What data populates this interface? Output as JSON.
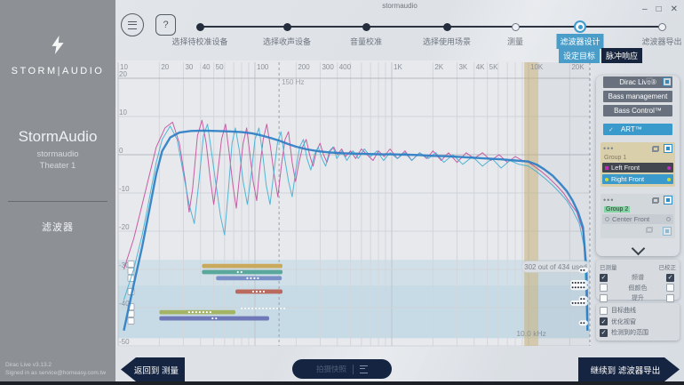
{
  "window": {
    "title": "stormaudio",
    "minimize": "–",
    "maximize": "□",
    "close": "✕",
    "help": "?"
  },
  "sidebar": {
    "brand": "STORM|AUDIO",
    "title": "StormAudio",
    "subtitle": "stormaudio",
    "theater": "Theater 1",
    "section": "滤波器",
    "version": "Dirac Live v3.13.2",
    "signed_in": "Signed in as service@homeasy.com.tw"
  },
  "stepper": {
    "steps": [
      {
        "label": "选择待校准设备",
        "state": "done"
      },
      {
        "label": "选择收声设备",
        "state": "done"
      },
      {
        "label": "音量校准",
        "state": "done"
      },
      {
        "label": "选择使用场景",
        "state": "done"
      },
      {
        "label": "测量",
        "state": "todo"
      },
      {
        "label": "滤波器设计",
        "state": "active"
      },
      {
        "label": "滤波器导出",
        "state": "todo"
      }
    ],
    "subtabs": [
      {
        "label": "设定目标",
        "active": true
      },
      {
        "label": "脉冲响应",
        "active": false
      }
    ]
  },
  "right_panel": {
    "modes": [
      {
        "label": "Dirac Live®",
        "active": false
      },
      {
        "label": "Bass management",
        "active": false
      },
      {
        "label": "Bass Control™",
        "active": false
      },
      {
        "label": "ART™",
        "active": true,
        "check": "✓"
      }
    ],
    "groups": [
      {
        "name": "Group 1",
        "menu": "•••",
        "items": [
          {
            "name": "Left Front",
            "style": "dark",
            "marker": "#bb2fb4"
          },
          {
            "name": "Right Front",
            "style": "blue",
            "marker": "#c9d832"
          }
        ]
      },
      {
        "name": "Group 2",
        "menu": "•••",
        "highlight": true,
        "items": [
          {
            "name": "Center Front",
            "style": "light",
            "marker": "donut"
          }
        ]
      }
    ]
  },
  "legend": {
    "measured_header": "已测量",
    "corrected_header": "已校正",
    "rows": [
      {
        "label": "频谱",
        "measured": true,
        "corrected": true
      },
      {
        "label": "假颜色",
        "measured": false,
        "corrected": false
      },
      {
        "label": "提升",
        "measured": false,
        "corrected": false
      }
    ],
    "options": [
      {
        "label": "目标曲线",
        "checked": false
      },
      {
        "label": "优化视窗",
        "checked": true
      },
      {
        "label": "检测到的范围",
        "checked": true
      }
    ]
  },
  "footer": {
    "back_label": "返回到 测量",
    "snapshot_label": "拍摄快照",
    "next_label": "继续到 滤波器导出"
  },
  "chart": {
    "freq_ticks": [
      {
        "f": 10,
        "label": "10"
      },
      {
        "f": 20,
        "label": "20"
      },
      {
        "f": 30,
        "label": "30"
      },
      {
        "f": 40,
        "label": "40"
      },
      {
        "f": 50,
        "label": "50"
      },
      {
        "f": 100,
        "label": "100"
      },
      {
        "f": 200,
        "label": "200"
      },
      {
        "f": 300,
        "label": "300"
      },
      {
        "f": 400,
        "label": "400"
      },
      {
        "f": 1000,
        "label": "1K"
      },
      {
        "f": 2000,
        "label": "2K"
      },
      {
        "f": 3000,
        "label": "3K"
      },
      {
        "f": 4000,
        "label": "4K"
      },
      {
        "f": 5000,
        "label": "5K"
      },
      {
        "f": 10000,
        "label": "10K"
      },
      {
        "f": 20000,
        "label": "20K"
      }
    ],
    "grid_freqs": [
      10,
      20,
      30,
      40,
      50,
      60,
      70,
      80,
      90,
      100,
      200,
      300,
      400,
      500,
      600,
      700,
      800,
      900,
      1000,
      2000,
      3000,
      4000,
      5000,
      6000,
      7000,
      8000,
      9000,
      10000,
      20000
    ],
    "db_ticks": [
      20,
      10,
      0,
      -10,
      -20,
      -30,
      -40,
      -50
    ],
    "cursor": {
      "f": 150,
      "label": "150 Hz"
    },
    "curtain": {
      "f1": 9300,
      "f2": 11800,
      "label": "10.0 kHz"
    },
    "tooltip": "302 out of 434 used",
    "strips": [
      {
        "db1": -27.5,
        "db2": -34.2,
        "alpha": 0.2
      },
      {
        "db1": -34.2,
        "db2": -48.0,
        "alpha": 0.3
      }
    ],
    "bands": [
      {
        "color": "#c9a95c",
        "f1": 41,
        "f2": 159,
        "db": -29.1,
        "dots": 0,
        "dotf": 0
      },
      {
        "color": "#5aa89b",
        "f1": 41,
        "f2": 159,
        "db": -30.7,
        "dots": 2,
        "dotf": 75
      },
      {
        "color": "#7b8fc7",
        "f1": 52,
        "f2": 157,
        "db": -32.3,
        "dots": 4,
        "dotf": 88
      },
      {
        "color": "#b9695e",
        "f1": 72,
        "f2": 159,
        "db": -35.8,
        "dots": 4,
        "dotf": 97
      },
      {
        "color": "#ffffff",
        "f1": 80,
        "f2": 164,
        "db": -40.2,
        "dots": 0,
        "dotf": 0,
        "dotted": true
      },
      {
        "color": "#a3b464",
        "f1": 20,
        "f2": 72,
        "db": -41.2,
        "dots": 7,
        "dotf": 33
      },
      {
        "color": "#6f79b8",
        "f1": 20,
        "f2": 127,
        "db": -42.8,
        "dots": 2,
        "dotf": 49
      }
    ],
    "band_checkboxes_db": [
      -28.6,
      -30.5,
      -32.3,
      -35.8,
      -39.8,
      -41.6,
      -43.5
    ],
    "handles": [
      {
        "db": -30.2,
        "dots": 2
      },
      {
        "db": -33.5,
        "dots": 5
      },
      {
        "db": -34.7,
        "dots": 5
      },
      {
        "db": -37.7,
        "dots": 2
      },
      {
        "db": -38.8,
        "dots": 5
      },
      {
        "db": -44.0,
        "dots": 2
      }
    ],
    "curves": {
      "corrected": {
        "color": "#2d7ec4",
        "width": 2.4,
        "points": [
          [
            11,
            -46
          ],
          [
            13,
            -34
          ],
          [
            15,
            -24
          ],
          [
            17,
            -14
          ],
          [
            19,
            -5
          ],
          [
            21,
            1
          ],
          [
            24,
            4.5
          ],
          [
            28,
            5.8
          ],
          [
            34,
            6.2
          ],
          [
            42,
            6.3
          ],
          [
            52,
            6.2
          ],
          [
            65,
            6.1
          ],
          [
            80,
            5.9
          ],
          [
            95,
            5.6
          ],
          [
            110,
            5.1
          ],
          [
            130,
            4.4
          ],
          [
            150,
            3.7
          ],
          [
            175,
            2.8
          ],
          [
            200,
            2.1
          ],
          [
            240,
            1.4
          ],
          [
            290,
            0.9
          ],
          [
            350,
            0.6
          ],
          [
            430,
            0.4
          ],
          [
            520,
            0.3
          ],
          [
            650,
            0.2
          ],
          [
            800,
            0.1
          ],
          [
            1000,
            0.1
          ],
          [
            1300,
            0
          ],
          [
            1600,
            -0.1
          ],
          [
            2000,
            -0.3
          ],
          [
            2500,
            -0.4
          ],
          [
            3200,
            -0.6
          ],
          [
            4000,
            -0.8
          ],
          [
            5000,
            -1
          ],
          [
            6300,
            -1.2
          ],
          [
            8000,
            -1.5
          ],
          [
            10000,
            -1.8
          ],
          [
            11500,
            -2.6
          ],
          [
            13000,
            -3.8
          ],
          [
            15000,
            -5.5
          ],
          [
            17000,
            -7.5
          ],
          [
            19000,
            -9.5
          ],
          [
            21000,
            -12
          ],
          [
            23000,
            -15
          ],
          [
            25000,
            -19
          ],
          [
            26500,
            -30
          ],
          [
            27000,
            -46
          ]
        ]
      },
      "measured_left": {
        "color": "#c4509c",
        "width": 1,
        "points": [
          [
            11,
            -30
          ],
          [
            13,
            -22
          ],
          [
            15,
            -13
          ],
          [
            17,
            -5
          ],
          [
            19,
            2
          ],
          [
            22,
            7
          ],
          [
            25,
            8.5
          ],
          [
            28,
            3
          ],
          [
            31,
            -7
          ],
          [
            33,
            -15
          ],
          [
            35,
            -9
          ],
          [
            38,
            5
          ],
          [
            41,
            9
          ],
          [
            44,
            3
          ],
          [
            47,
            -6
          ],
          [
            50,
            -13
          ],
          [
            53,
            -6
          ],
          [
            57,
            4
          ],
          [
            61,
            8
          ],
          [
            65,
            0
          ],
          [
            69,
            -8
          ],
          [
            73,
            -14
          ],
          [
            77,
            -6
          ],
          [
            82,
            3
          ],
          [
            87,
            7
          ],
          [
            92,
            0
          ],
          [
            97,
            -7
          ],
          [
            103,
            -12
          ],
          [
            108,
            -4
          ],
          [
            115,
            4
          ],
          [
            122,
            8
          ],
          [
            130,
            2
          ],
          [
            138,
            -5
          ],
          [
            147,
            -11
          ],
          [
            156,
            -3
          ],
          [
            166,
            4
          ],
          [
            176,
            6
          ],
          [
            187,
            -2
          ],
          [
            198,
            -7
          ],
          [
            210,
            -2
          ],
          [
            223,
            2
          ],
          [
            237,
            4
          ],
          [
            251,
            0
          ],
          [
            266,
            -3
          ],
          [
            282,
            1
          ],
          [
            299,
            3
          ],
          [
            317,
            0
          ],
          [
            336,
            -2
          ],
          [
            356,
            1
          ],
          [
            377,
            2
          ],
          [
            400,
            0
          ],
          [
            430,
            1.5
          ],
          [
            460,
            -0.5
          ],
          [
            500,
            1
          ],
          [
            545,
            -1
          ],
          [
            600,
            1.5
          ],
          [
            660,
            0
          ],
          [
            730,
            -1.5
          ],
          [
            800,
            1
          ],
          [
            880,
            -0.5
          ],
          [
            970,
            1.5
          ],
          [
            1100,
            -1
          ],
          [
            1250,
            1
          ],
          [
            1400,
            -1.5
          ],
          [
            1600,
            0.5
          ],
          [
            1800,
            -1
          ],
          [
            2000,
            1
          ],
          [
            2300,
            -1.5
          ],
          [
            2600,
            0.5
          ],
          [
            3000,
            -2
          ],
          [
            3500,
            0.5
          ],
          [
            4000,
            -1
          ],
          [
            4600,
            0.5
          ],
          [
            5300,
            -1.5
          ],
          [
            6100,
            0
          ],
          [
            7000,
            -2
          ],
          [
            8000,
            -0.5
          ],
          [
            9000,
            -1.5
          ],
          [
            10000,
            -2
          ],
          [
            11000,
            -3
          ],
          [
            12500,
            -4.5
          ],
          [
            14000,
            -6
          ],
          [
            16000,
            -8
          ],
          [
            18000,
            -10
          ],
          [
            20000,
            -12.5
          ],
          [
            22500,
            -15
          ],
          [
            25000,
            -20
          ],
          [
            26500,
            -32
          ],
          [
            27000,
            -46
          ]
        ]
      },
      "measured_right": {
        "color": "#45b0d2",
        "width": 1,
        "points": [
          [
            11,
            -38
          ],
          [
            13,
            -30
          ],
          [
            15,
            -21
          ],
          [
            17,
            -11
          ],
          [
            19,
            -2
          ],
          [
            21,
            4
          ],
          [
            24,
            7.5
          ],
          [
            27,
            4
          ],
          [
            30,
            -5
          ],
          [
            33,
            -13
          ],
          [
            36,
            -18
          ],
          [
            39,
            -7
          ],
          [
            42,
            5
          ],
          [
            45,
            8
          ],
          [
            48,
            1
          ],
          [
            52,
            -8
          ],
          [
            56,
            -16
          ],
          [
            60,
            -21
          ],
          [
            64,
            -9
          ],
          [
            68,
            3
          ],
          [
            72,
            7
          ],
          [
            77,
            1
          ],
          [
            82,
            -7
          ],
          [
            88,
            -13
          ],
          [
            94,
            -5
          ],
          [
            100,
            4
          ],
          [
            107,
            7
          ],
          [
            114,
            0
          ],
          [
            121,
            -8
          ],
          [
            129,
            -13
          ],
          [
            137,
            -5
          ],
          [
            146,
            3
          ],
          [
            155,
            6
          ],
          [
            165,
            -1
          ],
          [
            176,
            -7
          ],
          [
            187,
            -11
          ],
          [
            199,
            -4
          ],
          [
            212,
            2
          ],
          [
            226,
            4
          ],
          [
            240,
            -1
          ],
          [
            256,
            -4
          ],
          [
            272,
            0
          ],
          [
            290,
            2
          ],
          [
            309,
            -1
          ],
          [
            329,
            -3
          ],
          [
            350,
            1
          ],
          [
            373,
            2
          ],
          [
            397,
            -1
          ],
          [
            430,
            1
          ],
          [
            470,
            -1.5
          ],
          [
            520,
            1
          ],
          [
            570,
            -1
          ],
          [
            630,
            1.5
          ],
          [
            700,
            -0.5
          ],
          [
            780,
            1
          ],
          [
            870,
            -1.5
          ],
          [
            970,
            0.5
          ],
          [
            1100,
            -1
          ],
          [
            1250,
            0.5
          ],
          [
            1400,
            -1.5
          ],
          [
            1600,
            0.5
          ],
          [
            1850,
            -1
          ],
          [
            2100,
            0.5
          ],
          [
            2400,
            -2
          ],
          [
            2800,
            0
          ],
          [
            3300,
            -2.5
          ],
          [
            3900,
            -0.5
          ],
          [
            4600,
            -3
          ],
          [
            5400,
            -1
          ],
          [
            6300,
            -3.5
          ],
          [
            7300,
            -1.5
          ],
          [
            8500,
            -2.5
          ],
          [
            10000,
            -3
          ],
          [
            11500,
            -4.5
          ],
          [
            13000,
            -6
          ],
          [
            15000,
            -8
          ],
          [
            17000,
            -10
          ],
          [
            19000,
            -12
          ],
          [
            21000,
            -14.5
          ],
          [
            23500,
            -18
          ],
          [
            25500,
            -24
          ],
          [
            26800,
            -46
          ]
        ]
      }
    }
  }
}
